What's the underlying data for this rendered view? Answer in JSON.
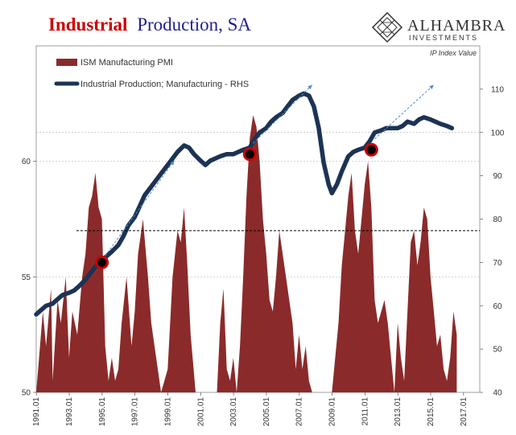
{
  "title": {
    "part1": "Industrial",
    "part2": "Production, SA",
    "color1": "#cc0000",
    "color2": "#1f1f8f"
  },
  "brand": {
    "name": "ALHAMBRA",
    "sub": "INVESTMENTS",
    "logo": "diamond-lattice-icon"
  },
  "chart_data": {
    "type": "area+line",
    "note": "IP Index Value",
    "x_ticks": [
      "1991.01",
      "1993.01",
      "1995.01",
      "1997.01",
      "1999.01",
      "2001.01",
      "2003.01",
      "2005.01",
      "2007.01",
      "2009.01",
      "2011.01",
      "2013.01",
      "2015.01",
      "2017.01"
    ],
    "x_range": [
      1991.0,
      2018.0
    ],
    "y_left": {
      "range": [
        50,
        65
      ],
      "ticks": [
        "50",
        "55",
        "60"
      ],
      "tick_values": [
        50,
        55,
        60
      ]
    },
    "y_right": {
      "range": [
        40,
        120
      ],
      "ticks": [
        "40",
        "50",
        "60",
        "70",
        "80",
        "90",
        "100",
        "110"
      ],
      "tick_values": [
        40,
        50,
        60,
        70,
        80,
        90,
        100,
        110
      ]
    },
    "legend": [
      {
        "label": "ISM Manufacturing PMI",
        "color": "#8b2a2a"
      },
      {
        "label": "Industrial Production; Manufacturing - RHS",
        "color": "#1c3355"
      }
    ],
    "reference_line_left": 57.0,
    "series_pmi": {
      "name": "ISM Manufacturing PMI",
      "color": "#8b2a2a",
      "x": [
        1991.0,
        1991.4,
        1991.6,
        1991.9,
        1992.0,
        1992.3,
        1992.5,
        1992.8,
        1993.0,
        1993.2,
        1993.5,
        1993.8,
        1994.0,
        1994.2,
        1994.4,
        1994.6,
        1994.8,
        1995.0,
        1995.2,
        1995.4,
        1995.6,
        1995.8,
        1996.0,
        1996.2,
        1996.5,
        1996.8,
        1997.0,
        1997.2,
        1997.5,
        1997.8,
        1998.0,
        1998.3,
        1998.6,
        1999.0,
        1999.3,
        1999.6,
        1999.8,
        2000.0,
        2000.2,
        2000.4,
        2000.7,
        2001.0,
        2002.0,
        2002.2,
        2002.4,
        2002.6,
        2002.8,
        2003.0,
        2003.2,
        2003.4,
        2003.6,
        2003.8,
        2004.0,
        2004.2,
        2004.4,
        2004.6,
        2004.8,
        2005.0,
        2005.2,
        2005.4,
        2005.6,
        2005.8,
        2006.0,
        2006.2,
        2006.4,
        2006.6,
        2006.8,
        2007.0,
        2007.2,
        2007.4,
        2007.6,
        2007.8,
        2008.0,
        2009.0,
        2009.4,
        2009.6,
        2009.8,
        2010.0,
        2010.2,
        2010.4,
        2010.6,
        2010.8,
        2011.0,
        2011.2,
        2011.4,
        2011.6,
        2011.8,
        2012.0,
        2012.2,
        2012.4,
        2012.6,
        2012.8,
        2013.0,
        2013.2,
        2013.4,
        2013.6,
        2013.8,
        2014.0,
        2014.2,
        2014.4,
        2014.6,
        2014.8,
        2015.0,
        2015.2,
        2015.4,
        2015.6,
        2015.8,
        2016.0,
        2016.2,
        2016.4,
        2016.6
      ],
      "values": [
        50.0,
        53.5,
        52.0,
        54.5,
        50.5,
        54.0,
        53.0,
        55.0,
        51.5,
        53.5,
        52.5,
        55.0,
        56.0,
        58.0,
        58.5,
        59.5,
        58.0,
        57.5,
        52.0,
        50.5,
        51.5,
        50.5,
        51.0,
        53.0,
        55.0,
        52.0,
        53.5,
        56.0,
        57.5,
        55.0,
        53.0,
        51.5,
        50.0,
        51.0,
        55.0,
        57.0,
        56.5,
        58.0,
        55.5,
        52.5,
        50.0,
        50.0,
        50.0,
        53.0,
        54.5,
        51.0,
        50.5,
        51.5,
        50.0,
        52.0,
        55.0,
        58.5,
        61.0,
        62.0,
        61.5,
        60.0,
        57.5,
        56.0,
        54.0,
        53.5,
        55.0,
        57.0,
        56.0,
        55.0,
        54.0,
        53.0,
        51.0,
        52.5,
        51.0,
        52.0,
        50.5,
        50.0,
        50.0,
        50.0,
        53.0,
        55.5,
        57.0,
        58.5,
        59.5,
        57.0,
        56.0,
        57.5,
        59.0,
        60.0,
        58.0,
        54.0,
        53.0,
        53.5,
        54.0,
        53.0,
        51.5,
        50.0,
        53.0,
        51.5,
        50.5,
        53.5,
        56.5,
        57.0,
        55.5,
        56.5,
        58.0,
        57.5,
        55.0,
        53.5,
        52.0,
        52.5,
        51.0,
        50.5,
        51.5,
        53.5,
        52.5
      ]
    },
    "series_ip": {
      "name": "Industrial Production; Manufacturing - RHS",
      "color": "#1c3355",
      "x": [
        1991.0,
        1991.3,
        1991.6,
        1992.0,
        1992.3,
        1992.6,
        1993.0,
        1993.3,
        1993.6,
        1994.0,
        1994.3,
        1994.6,
        1995.0,
        1995.3,
        1995.6,
        1996.0,
        1996.3,
        1996.6,
        1997.0,
        1997.3,
        1997.6,
        1998.0,
        1998.3,
        1998.6,
        1999.0,
        1999.3,
        1999.6,
        2000.0,
        2000.3,
        2000.6,
        2001.0,
        2001.3,
        2001.6,
        2001.9,
        2002.2,
        2002.6,
        2003.0,
        2003.3,
        2003.6,
        2004.0,
        2004.3,
        2004.6,
        2005.0,
        2005.3,
        2005.6,
        2006.0,
        2006.3,
        2006.6,
        2007.0,
        2007.3,
        2007.6,
        2007.9,
        2008.2,
        2008.5,
        2008.8,
        2009.0,
        2009.3,
        2009.6,
        2010.0,
        2010.3,
        2010.6,
        2011.0,
        2011.3,
        2011.6,
        2012.0,
        2012.3,
        2012.6,
        2013.0,
        2013.3,
        2013.6,
        2014.0,
        2014.3,
        2014.6,
        2015.0,
        2015.3,
        2015.6,
        2016.0,
        2016.3
      ],
      "values": [
        58.0,
        59.0,
        60.0,
        60.5,
        61.5,
        62.5,
        63.0,
        63.5,
        64.5,
        66.0,
        67.5,
        69.0,
        70.5,
        71.5,
        72.5,
        74.0,
        76.0,
        78.5,
        80.5,
        83.0,
        85.5,
        87.5,
        89.0,
        90.5,
        92.5,
        94.0,
        95.5,
        97.0,
        96.5,
        95.0,
        93.5,
        92.5,
        93.5,
        94.0,
        94.5,
        95.0,
        95.0,
        95.5,
        96.0,
        96.5,
        98.5,
        100.0,
        101.0,
        102.5,
        103.5,
        104.5,
        106.0,
        107.5,
        108.5,
        109.0,
        108.5,
        106.0,
        101.0,
        93.0,
        88.0,
        86.0,
        88.0,
        91.0,
        94.5,
        95.5,
        96.0,
        96.5,
        98.0,
        100.0,
        100.5,
        101.0,
        101.0,
        101.0,
        101.5,
        102.5,
        102.0,
        103.0,
        103.5,
        103.0,
        102.5,
        102.0,
        101.5,
        101.0
      ]
    },
    "markers": [
      {
        "x": 1995.0,
        "y": 70.0,
        "color": "#cc0000"
      },
      {
        "x": 2004.0,
        "y": 95.0,
        "color": "#cc0000"
      },
      {
        "x": 2011.4,
        "y": 96.0,
        "color": "#cc0000"
      }
    ],
    "trend_arrows": [
      {
        "x0": 1995.2,
        "y0": 71.5,
        "x1": 1999.4,
        "y1": 93.5
      },
      {
        "x0": 2004.2,
        "y0": 97.5,
        "x1": 2007.8,
        "y1": 111.0
      },
      {
        "x0": 2011.6,
        "y0": 98.5,
        "x1": 2015.2,
        "y1": 111.0
      }
    ]
  }
}
